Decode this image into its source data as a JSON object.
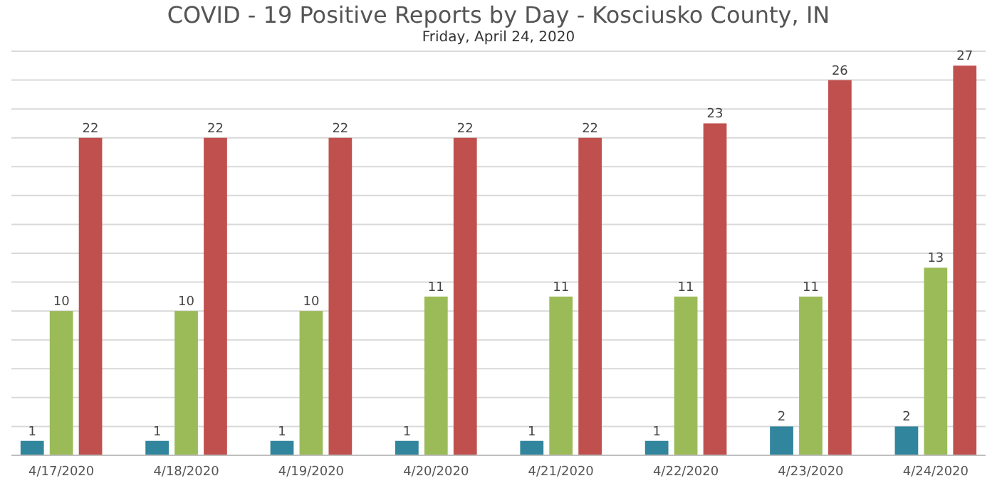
{
  "chart_data": {
    "type": "bar",
    "title": "COVID - 19 Positive Reports by Day - Kosciusko County, IN",
    "subtitle": "Friday, April 24, 2020",
    "categories": [
      "4/17/2020",
      "4/18/2020",
      "4/19/2020",
      "4/20/2020",
      "4/21/2020",
      "4/22/2020",
      "4/23/2020",
      "4/24/2020"
    ],
    "series": [
      {
        "color": "#31859c",
        "values": [
          1,
          1,
          1,
          1,
          1,
          1,
          2,
          2
        ]
      },
      {
        "color": "#9bbb59",
        "values": [
          10,
          10,
          10,
          11,
          11,
          11,
          11,
          13
        ]
      },
      {
        "color": "#c0504d",
        "values": [
          22,
          22,
          22,
          22,
          22,
          23,
          26,
          27
        ]
      }
    ],
    "ylim": [
      0,
      28
    ],
    "yticks": [
      {
        "value": 0,
        "label": null
      },
      {
        "value": 2,
        "label": null
      },
      {
        "value": 4,
        "label": null
      },
      {
        "value": 6,
        "label": null
      },
      {
        "value": 8,
        "label": null
      },
      {
        "value": 10,
        "label": null
      },
      {
        "value": 12,
        "label": null
      },
      {
        "value": 14,
        "label": null
      },
      {
        "value": 16,
        "label": null
      },
      {
        "value": 18,
        "label": null
      },
      {
        "value": 20,
        "label": null
      },
      {
        "value": 22,
        "label": null
      },
      {
        "value": 24,
        "label": null
      },
      {
        "value": 26,
        "label": null
      },
      {
        "value": 28,
        "label": null
      }
    ],
    "tick_labels": "x",
    "grid": "y",
    "data_labels": true
  }
}
